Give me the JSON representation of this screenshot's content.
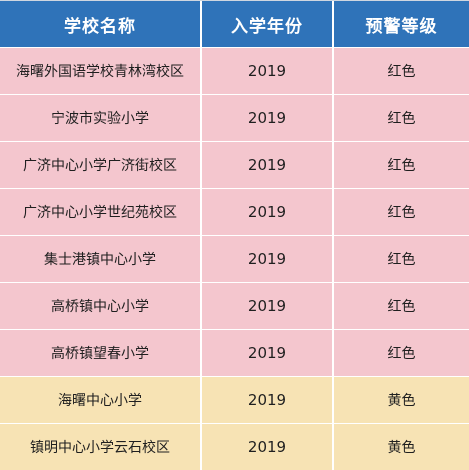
{
  "table": {
    "headers": [
      "学校名称",
      "入学年份",
      "预警等级"
    ],
    "rows": [
      {
        "school": "海曙外国语学校青林湾校区",
        "year": "2019",
        "level": "红色",
        "tone": "red"
      },
      {
        "school": "宁波市实验小学",
        "year": "2019",
        "level": "红色",
        "tone": "red"
      },
      {
        "school": "广济中心小学广济街校区",
        "year": "2019",
        "level": "红色",
        "tone": "red"
      },
      {
        "school": "广济中心小学世纪苑校区",
        "year": "2019",
        "level": "红色",
        "tone": "red"
      },
      {
        "school": "集士港镇中心小学",
        "year": "2019",
        "level": "红色",
        "tone": "red"
      },
      {
        "school": "高桥镇中心小学",
        "year": "2019",
        "level": "红色",
        "tone": "red"
      },
      {
        "school": "高桥镇望春小学",
        "year": "2019",
        "level": "红色",
        "tone": "red"
      },
      {
        "school": "海曙中心小学",
        "year": "2019",
        "level": "黄色",
        "tone": "yellow"
      },
      {
        "school": "镇明中心小学云石校区",
        "year": "2019",
        "level": "黄色",
        "tone": "yellow"
      }
    ]
  },
  "colors": {
    "header": "#2f73b9",
    "red_row": "#f4c6ce",
    "yellow_row": "#f7e3b4"
  }
}
